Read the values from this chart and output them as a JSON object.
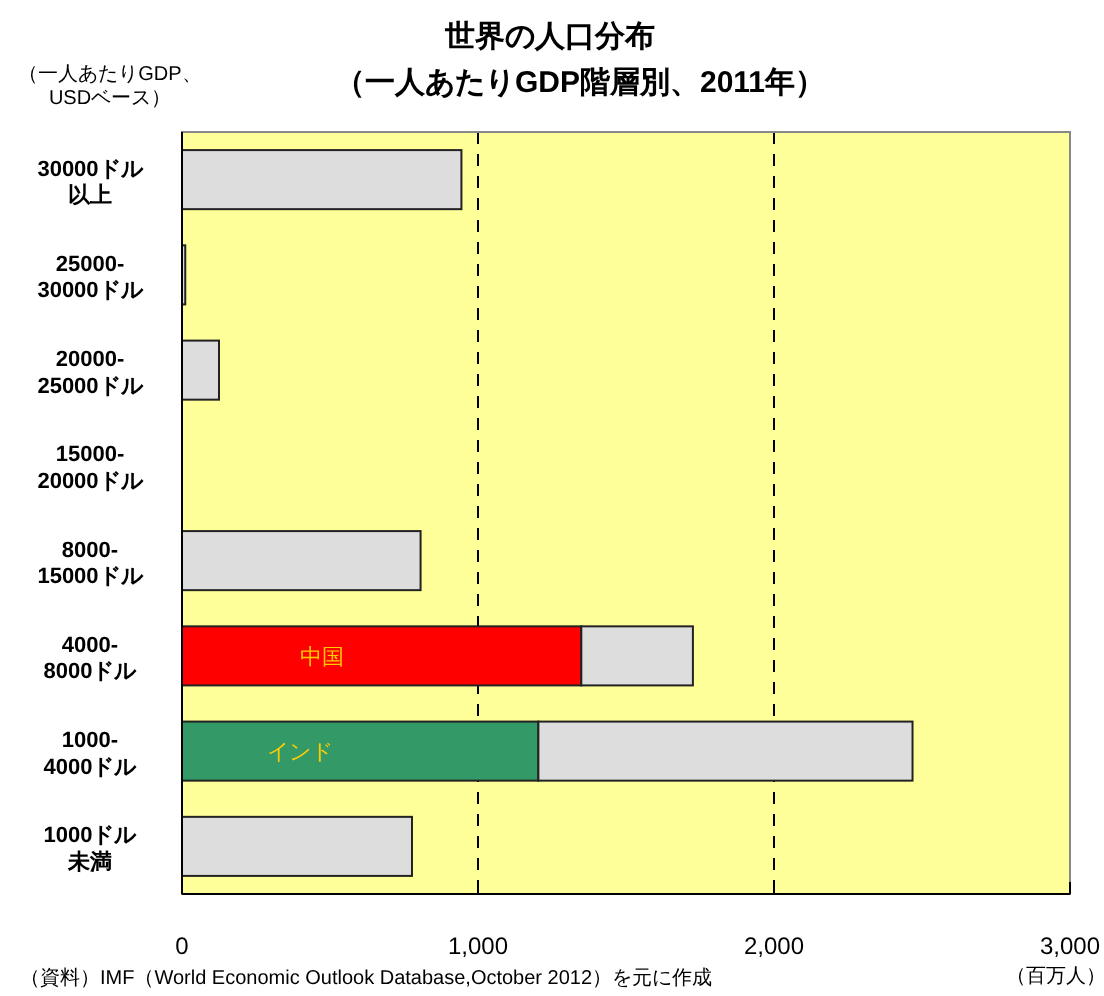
{
  "chart_data": {
    "type": "bar",
    "orientation": "horizontal",
    "stacked": true,
    "title": "世界の人口分布",
    "subtitle": "（一人あたりGDP階層別、2011年）",
    "ylabel": "（一人あたりGDP、\nUSDベース）",
    "xlabel": "（百万人）",
    "categories": [
      "30000ドル以上",
      "25000-\n30000ドル",
      "20000-\n25000ドル",
      "15000-\n20000ドル",
      "8000-\n15000ドル",
      "4000-\n8000ドル",
      "1000-\n4000ドル",
      "1000ドル未満"
    ],
    "series": [
      {
        "name": "中国",
        "color": "#ff0000",
        "values": [
          null,
          null,
          null,
          null,
          null,
          1349,
          null,
          null
        ]
      },
      {
        "name": "インド",
        "color": "#339966",
        "values": [
          null,
          null,
          null,
          null,
          null,
          null,
          1204,
          null
        ]
      },
      {
        "color": "#dddddd",
        "values": [
          944,
          11,
          125,
          null,
          806,
          377,
          1264,
          777
        ]
      }
    ],
    "xlim": [
      0,
      3000
    ],
    "xticks": [
      0,
      {
        "value": 1000,
        "label": "1,000"
      },
      {
        "value": 2000,
        "label": "2,000"
      },
      {
        "value": 3000,
        "label": "3,000"
      }
    ],
    "grid": "x",
    "annotations": [
      "（資料）IMF（World Economic Outlook Database,October 2012）を元に作成"
    ]
  }
}
